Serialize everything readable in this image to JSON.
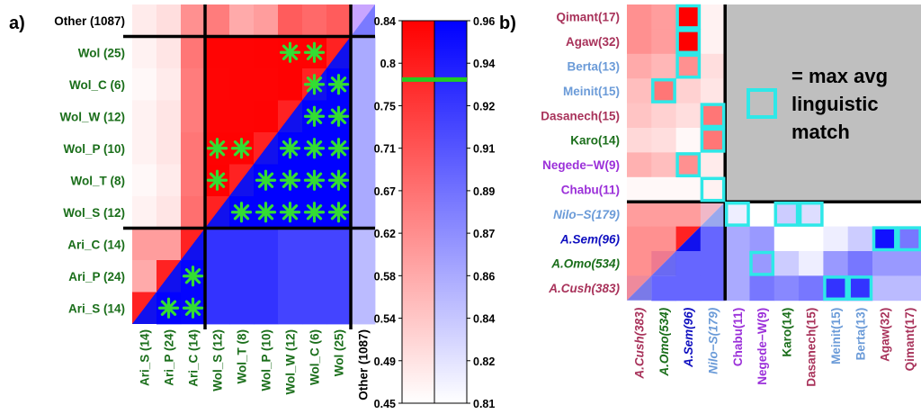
{
  "chart_data": [
    {
      "panel_label": "a)",
      "type": "heatmap",
      "row_labels": [
        "Other (1087)",
        "Wol (25)",
        "Wol_C (6)",
        "Wol_W (12)",
        "Wol_P (10)",
        "Wol_T (8)",
        "Wol_S (12)",
        "Ari_C (14)",
        "Ari_P (24)",
        "Ari_S (14)"
      ],
      "col_labels": [
        "Ari_S (14)",
        "Ari_P (24)",
        "Ari_C (14)",
        "Wol_S (12)",
        "Wol_T (8)",
        "Wol_P (10)",
        "Wol_W (12)",
        "Wol_C (6)",
        "Wol (25)",
        "Other (1087)"
      ],
      "row_colors": [
        "#000000",
        "#1a6e1a",
        "#1a6e1a",
        "#1a6e1a",
        "#1a6e1a",
        "#1a6e1a",
        "#1a6e1a",
        "#1a6e1a",
        "#1a6e1a",
        "#1a6e1a"
      ],
      "col_colors": [
        "#1a6e1a",
        "#1a6e1a",
        "#1a6e1a",
        "#1a6e1a",
        "#1a6e1a",
        "#1a6e1a",
        "#1a6e1a",
        "#1a6e1a",
        "#1a6e1a",
        "#000000"
      ],
      "red_scale": {
        "min": 0.45,
        "max": 0.84,
        "ticks": [
          "0.84",
          "0.8",
          "0.75",
          "0.71",
          "0.67",
          "0.62",
          "0.58",
          "0.54",
          "0.49",
          "0.45"
        ]
      },
      "blue_scale": {
        "min": 0.81,
        "max": 0.96,
        "ticks": [
          "0.96",
          "0.94",
          "0.92",
          "0.91",
          "0.89",
          "0.87",
          "0.86",
          "0.84",
          "0.82",
          "0.81"
        ]
      },
      "marker_value": 0.78,
      "red_values": [
        [
          0.48,
          0.5,
          0.62,
          0.65,
          0.58,
          0.6,
          0.7,
          0.68,
          0.7,
          null
        ],
        [
          0.47,
          0.49,
          0.66,
          0.75,
          0.76,
          0.77,
          0.8,
          0.8,
          null,
          null
        ],
        [
          0.46,
          0.48,
          0.65,
          0.74,
          0.75,
          0.76,
          0.79,
          null,
          null,
          null
        ],
        [
          0.47,
          0.49,
          0.65,
          0.75,
          0.76,
          0.77,
          null,
          null,
          null,
          null
        ],
        [
          0.47,
          0.49,
          0.66,
          0.79,
          0.8,
          null,
          null,
          null,
          null,
          null
        ],
        [
          0.46,
          0.48,
          0.66,
          0.81,
          null,
          null,
          null,
          null,
          null,
          null
        ],
        [
          0.47,
          0.49,
          0.67,
          null,
          null,
          null,
          null,
          null,
          null,
          null
        ],
        [
          0.6,
          0.6,
          null,
          null,
          null,
          null,
          null,
          null,
          null,
          null
        ],
        [
          0.58,
          null,
          null,
          null,
          null,
          null,
          null,
          null,
          null,
          null
        ],
        [
          null,
          null,
          null,
          null,
          null,
          null,
          null,
          null,
          null,
          null
        ]
      ],
      "blue_values": [
        [
          null,
          null,
          null,
          null,
          null,
          null,
          null,
          null,
          null,
          null
        ],
        [
          null,
          null,
          null,
          null,
          null,
          null,
          null,
          null,
          null,
          0.86
        ],
        [
          null,
          null,
          null,
          null,
          null,
          null,
          null,
          null,
          0.95,
          0.86
        ],
        [
          null,
          null,
          null,
          null,
          null,
          null,
          null,
          0.95,
          0.95,
          0.86
        ],
        [
          null,
          null,
          null,
          null,
          null,
          null,
          0.95,
          0.95,
          0.95,
          0.86
        ],
        [
          null,
          null,
          null,
          null,
          0.95,
          0.95,
          0.95,
          0.95,
          0.95,
          0.86
        ],
        [
          null,
          null,
          null,
          0.95,
          0.95,
          0.95,
          0.95,
          0.95,
          0.95,
          0.86
        ],
        [
          null,
          null,
          0.93,
          0.93,
          0.93,
          0.93,
          0.92,
          0.92,
          0.92,
          0.85
        ],
        [
          null,
          0.94,
          0.93,
          0.93,
          0.93,
          0.93,
          0.92,
          0.92,
          0.92,
          0.85
        ],
        [
          0.94,
          0.94,
          0.93,
          0.93,
          0.93,
          0.93,
          0.92,
          0.92,
          0.92,
          0.85
        ]
      ],
      "diagonal_cells": [
        [
          0,
          9
        ],
        [
          1,
          8
        ],
        [
          2,
          7
        ],
        [
          3,
          6
        ],
        [
          4,
          5
        ],
        [
          5,
          4
        ],
        [
          6,
          3
        ],
        [
          7,
          2
        ],
        [
          8,
          1
        ],
        [
          9,
          0
        ]
      ],
      "diagonal_colors": [
        {
          "red": "#c9a5ff",
          "blue": "#7a7aff"
        },
        {
          "red": "#ff2222",
          "blue": "#1111ee"
        },
        {
          "red": "#ff2222",
          "blue": "#1111ee"
        },
        {
          "red": "#ff2222",
          "blue": "#1111ee"
        },
        {
          "red": "#ff2222",
          "blue": "#1111ee"
        },
        {
          "red": "#ff2222",
          "blue": "#1111ee"
        },
        {
          "red": "#ff2222",
          "blue": "#1111ee"
        },
        {
          "red": "#ff2222",
          "blue": "#1111ee"
        },
        {
          "red": "#ff2222",
          "blue": "#1111ee"
        },
        {
          "red": "#ff2222",
          "blue": "#1111ee"
        }
      ],
      "stars": [
        [
          1,
          6
        ],
        [
          1,
          7
        ],
        [
          2,
          7
        ],
        [
          2,
          8
        ],
        [
          3,
          7
        ],
        [
          3,
          8
        ],
        [
          4,
          3
        ],
        [
          4,
          4
        ],
        [
          4,
          6
        ],
        [
          4,
          7
        ],
        [
          4,
          8
        ],
        [
          5,
          3
        ],
        [
          5,
          5
        ],
        [
          5,
          6
        ],
        [
          5,
          7
        ],
        [
          5,
          8
        ],
        [
          6,
          4
        ],
        [
          6,
          5
        ],
        [
          6,
          6
        ],
        [
          6,
          7
        ],
        [
          6,
          8
        ],
        [
          8,
          2
        ],
        [
          9,
          1
        ],
        [
          9,
          2
        ]
      ],
      "group_lines": {
        "rows_after": [
          0,
          6
        ],
        "cols_after": [
          2,
          8
        ]
      }
    },
    {
      "panel_label": "b)",
      "type": "heatmap",
      "row_labels": [
        "Qimant(17)",
        "Agaw(32)",
        "Berta(13)",
        "Meinit(15)",
        "Dasanech(15)",
        "Karo(14)",
        "Negede−W(9)",
        "Chabu(11)",
        "Nilo−S(179)",
        "A.Sem(96)",
        "A.Omo(534)",
        "A.Cush(383)"
      ],
      "row_colors": [
        "#a8325a",
        "#a8325a",
        "#6b9bd8",
        "#6b9bd8",
        "#a8325a",
        "#1a6e1a",
        "#9b30d9",
        "#9b30d9",
        "#6b9bd8",
        "#1010c0",
        "#1a6e1a",
        "#a8325a"
      ],
      "row_italic": [
        false,
        false,
        false,
        false,
        false,
        false,
        false,
        false,
        true,
        true,
        true,
        true
      ],
      "col_labels": [
        "A.Cush(383)",
        "A.Omo(534)",
        "A.Sem(96)",
        "Nilo−S(179)",
        "Chabu(11)",
        "Negede−W(9)",
        "Karo(14)",
        "Dasanech(15)",
        "Meinit(15)",
        "Berta(13)",
        "Agaw(32)",
        "Qimant(17)"
      ],
      "col_colors": [
        "#a8325a",
        "#1a6e1a",
        "#1010c0",
        "#6b9bd8",
        "#9b30d9",
        "#9b30d9",
        "#1a6e1a",
        "#a8325a",
        "#6b9bd8",
        "#6b9bd8",
        "#a8325a",
        "#a8325a"
      ],
      "col_italic": [
        true,
        true,
        true,
        true,
        false,
        false,
        false,
        false,
        false,
        false,
        false,
        false
      ],
      "red_values": [
        [
          0.62,
          0.6,
          0.84,
          0.47
        ],
        [
          0.62,
          0.6,
          0.84,
          0.47
        ],
        [
          0.58,
          0.56,
          0.62,
          0.5
        ],
        [
          0.55,
          0.66,
          0.52,
          0.49
        ],
        [
          0.54,
          0.52,
          0.5,
          0.66
        ],
        [
          0.51,
          0.5,
          0.46,
          0.66
        ],
        [
          0.57,
          0.55,
          0.62,
          0.48
        ],
        [
          0.46,
          0.46,
          0.46,
          0.47
        ],
        [
          0.6,
          0.6,
          0.6,
          null
        ],
        [
          0.62,
          0.62,
          null,
          null
        ],
        [
          0.62,
          null,
          null,
          null
        ],
        [
          null,
          null,
          null,
          null
        ]
      ],
      "blue_values": [
        [
          null,
          null,
          null,
          null,
          0.82,
          0.81,
          0.84,
          0.83,
          0.81,
          0.81,
          0.81,
          0.81
        ],
        [
          null,
          null,
          null,
          0.86,
          0.86,
          0.87,
          0.81,
          0.81,
          0.82,
          0.84,
          0.95,
          0.89
        ],
        [
          null,
          null,
          0.96,
          0.88,
          0.86,
          0.87,
          0.84,
          0.82,
          0.87,
          0.89,
          0.87,
          0.87
        ],
        [
          null,
          0.91,
          0.88,
          0.86,
          0.86,
          0.89,
          0.88,
          0.89,
          0.93,
          0.93,
          0.85,
          0.85
        ]
      ],
      "cross_cells": [
        [
          8,
          3
        ],
        [
          9,
          2
        ],
        [
          10,
          1
        ],
        [
          11,
          0
        ]
      ],
      "cross_colors": [
        {
          "red": "#f0b8c8",
          "blue": "#9aa8ee"
        },
        {
          "red": "#ff2222",
          "blue": "#1111ee"
        },
        {
          "red": "#ee7a90",
          "blue": "#6a6af2"
        },
        {
          "red": "#ee8a9c",
          "blue": "#7a7ae8"
        }
      ],
      "highlight_red": [
        [
          0,
          2
        ],
        [
          1,
          2
        ],
        [
          2,
          2
        ],
        [
          3,
          1
        ],
        [
          4,
          3
        ],
        [
          5,
          3
        ],
        [
          6,
          2
        ],
        [
          7,
          3
        ]
      ],
      "highlight_blue": [
        [
          0,
          4
        ],
        [
          0,
          6
        ],
        [
          0,
          7
        ],
        [
          1,
          10
        ],
        [
          1,
          11
        ],
        [
          2,
          5
        ],
        [
          3,
          8
        ],
        [
          3,
          9
        ]
      ],
      "legend_text_lines": [
        "= max avg",
        "linguistic",
        "match"
      ],
      "highlight_color": "#2ee8e8",
      "gray_fill": "#bfbfbf"
    }
  ]
}
